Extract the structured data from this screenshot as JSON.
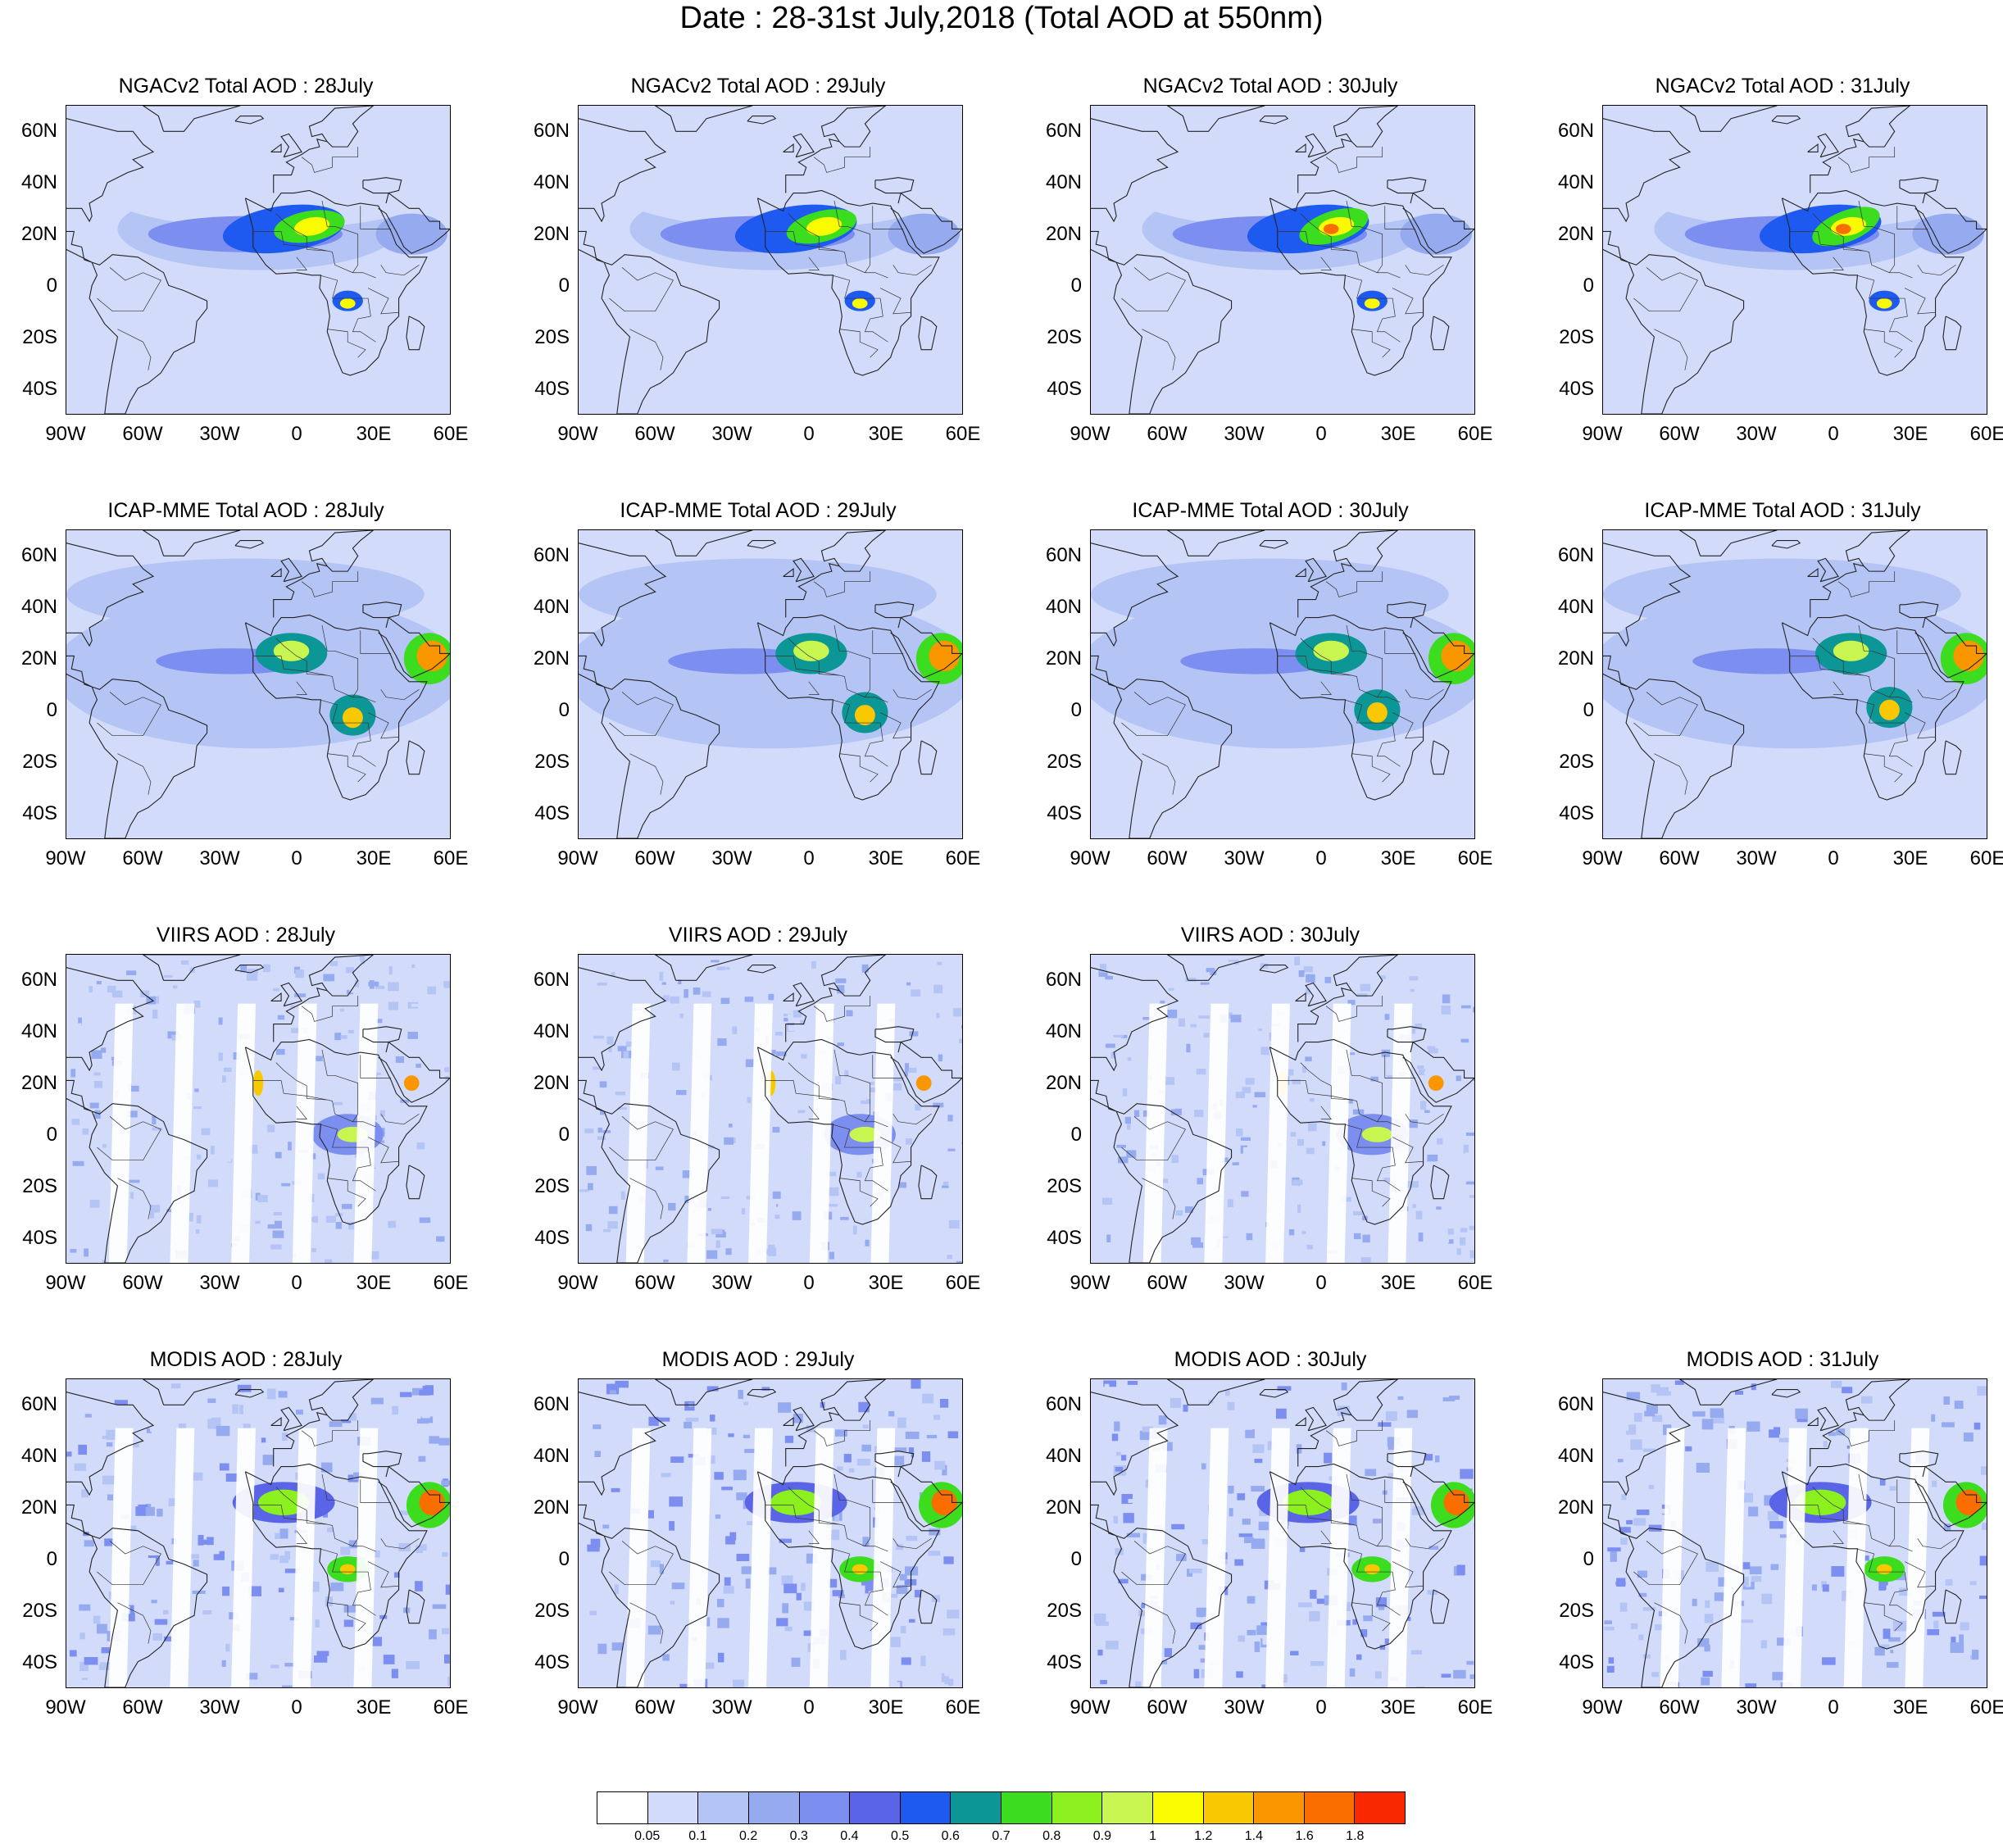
{
  "title": "Date : 28-31st July,2018 (Total AOD at 550nm)",
  "lat_labels": [
    "60N",
    "40N",
    "20N",
    "0",
    "20S",
    "40S"
  ],
  "lon_labels": [
    "90W",
    "60W",
    "30W",
    "0",
    "30E",
    "60E"
  ],
  "map_extent": {
    "lon_min": -90,
    "lon_max": 60,
    "lat_min": -50,
    "lat_max": 70
  },
  "rows": [
    {
      "product": "NGACv2",
      "panels": [
        {
          "title": "NGACv2 Total AOD : 28July",
          "day": "28July"
        },
        {
          "title": "NGACv2 Total AOD : 29July",
          "day": "29July"
        },
        {
          "title": "NGACv2 Total AOD : 30July",
          "day": "30July"
        },
        {
          "title": "NGACv2 Total AOD : 31July",
          "day": "31July"
        }
      ]
    },
    {
      "product": "ICAP-MME",
      "panels": [
        {
          "title": "ICAP-MME Total AOD : 28July",
          "day": "28July"
        },
        {
          "title": "ICAP-MME Total AOD : 29July",
          "day": "29July"
        },
        {
          "title": "ICAP-MME Total AOD : 30July",
          "day": "30July"
        },
        {
          "title": "ICAP-MME Total AOD : 31July",
          "day": "31July"
        }
      ]
    },
    {
      "product": "VIIRS",
      "panels": [
        {
          "title": "VIIRS AOD : 28July",
          "day": "28July"
        },
        {
          "title": "VIIRS AOD : 29July",
          "day": "29July"
        },
        {
          "title": "VIIRS AOD : 30July",
          "day": "30July"
        }
      ]
    },
    {
      "product": "MODIS",
      "panels": [
        {
          "title": "MODIS AOD : 28July",
          "day": "28July"
        },
        {
          "title": "MODIS AOD : 29July",
          "day": "29July"
        },
        {
          "title": "MODIS AOD : 30July",
          "day": "30July"
        },
        {
          "title": "MODIS AOD : 31July",
          "day": "31July"
        }
      ]
    }
  ],
  "colorbar": {
    "labels": [
      "0.05",
      "0.1",
      "0.2",
      "0.3",
      "0.4",
      "0.5",
      "0.6",
      "0.7",
      "0.8",
      "0.9",
      "1",
      "1.2",
      "1.4",
      "1.6",
      "1.8"
    ],
    "colors": [
      "#ffffff",
      "#d2dcfa",
      "#b4c4f4",
      "#96aaf0",
      "#7c8ef0",
      "#5a64e6",
      "#1e5af0",
      "#0c9696",
      "#3cdc1e",
      "#8cf01e",
      "#c8f550",
      "#fafa00",
      "#fac800",
      "#fa9600",
      "#fa6e00",
      "#fa2800"
    ]
  }
}
